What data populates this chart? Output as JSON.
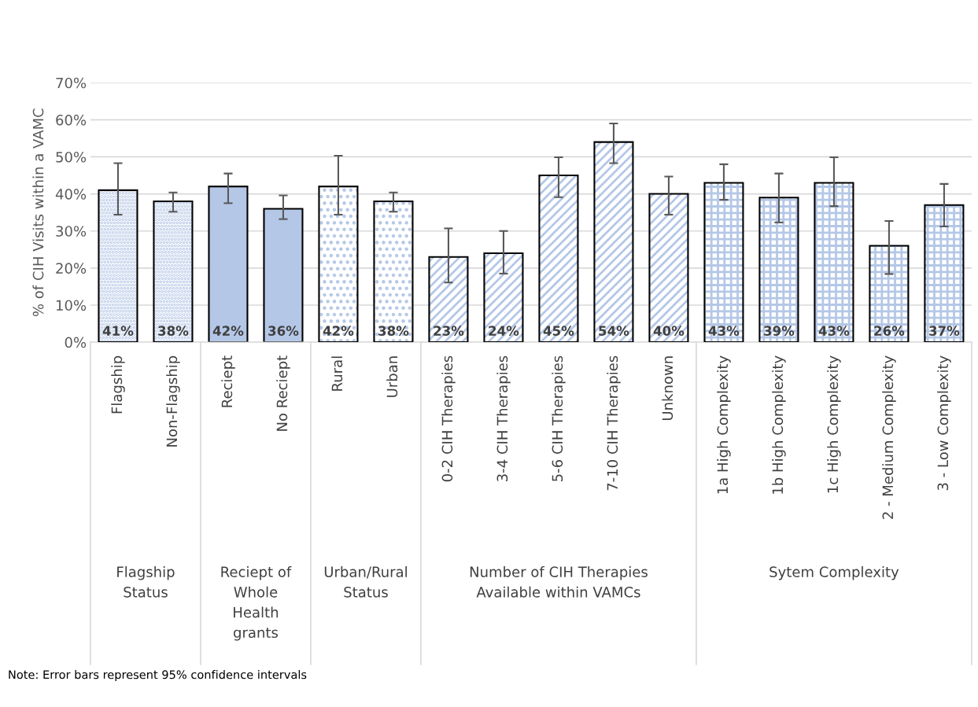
{
  "chart_data": {
    "type": "bar",
    "ylabel": "% of CIH Visits within a VAMC",
    "categories": [
      "Flagship",
      "Non-Flagship",
      "Reciept",
      "No Reciept",
      "Rural",
      "Urban",
      "0-2 CIH Therapies",
      "3-4 CIH Therapies",
      "5-6 CIH Therapies",
      "7-10 CIH Therapies",
      "Unknown",
      "1a High Complexity",
      "1b High Complexity",
      "1c High Complexity",
      "2 - Medium Complexity",
      "3 - Low Complexity"
    ],
    "values": [
      41,
      38,
      42,
      36,
      42,
      38,
      23,
      24,
      45,
      54,
      40,
      43,
      39,
      43,
      26,
      37
    ],
    "errors": [
      [
        34.4,
        48.3
      ],
      [
        35.2,
        40.4
      ],
      [
        37.5,
        45.5
      ],
      [
        33.2,
        39.6
      ],
      [
        34.4,
        50.3
      ],
      [
        35.2,
        40.4
      ],
      [
        16.1,
        30.7
      ],
      [
        18.5,
        30.0
      ],
      [
        39.1,
        49.9
      ],
      [
        48.3,
        59.0
      ],
      [
        34.4,
        44.7
      ],
      [
        38.4,
        48.0
      ],
      [
        32.3,
        45.5
      ],
      [
        36.7,
        49.9
      ],
      [
        18.4,
        32.7
      ],
      [
        31.2,
        42.7
      ]
    ],
    "value_labels": [
      "41%",
      "38%",
      "42%",
      "36%",
      "42%",
      "38%",
      "23%",
      "24%",
      "45%",
      "54%",
      "40%",
      "43%",
      "39%",
      "43%",
      "26%",
      "37%"
    ],
    "color": "#b4c7e7",
    "ylim": [
      0,
      70
    ],
    "yticks": [
      {
        "value": 0,
        "label": "0%"
      },
      {
        "value": 10,
        "label": "10%"
      },
      {
        "value": 20,
        "label": "20%"
      },
      {
        "value": 30,
        "label": "30%"
      },
      {
        "value": 40,
        "label": "40%"
      },
      {
        "value": 50,
        "label": "50%"
      },
      {
        "value": 60,
        "label": "60%"
      },
      {
        "value": 70,
        "label": "70%"
      }
    ],
    "grid": "y",
    "legend": false,
    "annotations": [
      "Flagship\nStatus",
      "Reciept of\nWhole\nHealth\ngrants",
      "Urban/Rural\nStatus",
      "Number of CIH Therapies\nAvailable within VAMCs",
      "Sytem Complexity",
      "Note: Error bars represent 95% confidence intervals"
    ]
  }
}
